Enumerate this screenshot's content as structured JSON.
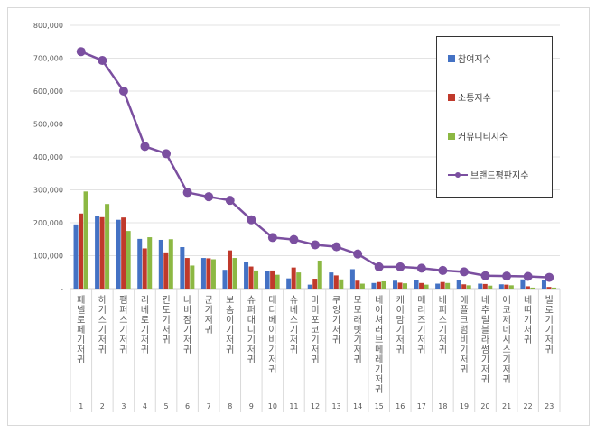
{
  "chart_data": {
    "type": "bar",
    "categories": [
      "페넬로페기저귀",
      "하기스기저귀",
      "팸퍼스기저귀",
      "리베로기저귀",
      "킨도기저귀",
      "나비잠기저귀",
      "군기저귀",
      "보솜이기저귀",
      "슈퍼대디기저귀",
      "대디베이비기저귀",
      "슈베스기저귀",
      "마미포코기저귀",
      "쿠잉기저귀",
      "모모래빗기저귀",
      "네이쳐러브메레기저귀",
      "케이맘기저귀",
      "메리즈기저귀",
      "베피스기저귀",
      "애플크럼비기저귀",
      "네추럴블라썸기저귀",
      "에코제네시스기저귀",
      "네띠기저귀",
      "빌로기기저귀"
    ],
    "ranks": [
      "1",
      "2",
      "3",
      "4",
      "5",
      "6",
      "7",
      "8",
      "9",
      "10",
      "11",
      "12",
      "13",
      "14",
      "15",
      "16",
      "17",
      "18",
      "19",
      "20",
      "21",
      "22",
      "23"
    ],
    "series": [
      {
        "name": "참여지수",
        "type": "bar",
        "color": "#4472c4",
        "values": [
          195000,
          220000,
          209000,
          151000,
          148000,
          126000,
          93000,
          57000,
          81000,
          53000,
          31000,
          12000,
          49000,
          59000,
          17000,
          24000,
          27000,
          15000,
          26000,
          15000,
          13000,
          28000,
          26000
        ]
      },
      {
        "name": "소통지수",
        "type": "bar",
        "color": "#c0392b",
        "values": [
          228000,
          217000,
          216000,
          122000,
          110000,
          93000,
          92000,
          116000,
          67000,
          55000,
          64000,
          30000,
          40000,
          24000,
          20000,
          18000,
          17000,
          20000,
          13000,
          14000,
          12000,
          7000,
          5000
        ]
      },
      {
        "name": "커뮤니티지수",
        "type": "bar",
        "color": "#8cb843",
        "values": [
          295000,
          257000,
          175000,
          156000,
          150000,
          70000,
          89000,
          93000,
          55000,
          42000,
          49000,
          85000,
          28000,
          15000,
          22000,
          16000,
          12000,
          17000,
          10000,
          9000,
          10000,
          3000,
          3000
        ]
      },
      {
        "name": "브랜드평판지수",
        "type": "line",
        "color": "#7b4fa0",
        "values": [
          720000,
          693000,
          600000,
          432000,
          410000,
          292000,
          279000,
          268000,
          209000,
          155000,
          149000,
          133000,
          127000,
          105000,
          66000,
          66000,
          62000,
          55000,
          51000,
          39000,
          38000,
          37000,
          34000
        ]
      }
    ],
    "yticks": [
      "-",
      "100,000",
      "200,000",
      "300,000",
      "400,000",
      "500,000",
      "600,000",
      "700,000",
      "800,000"
    ],
    "ylim": [
      0,
      800000
    ],
    "grid": true,
    "legend": "top-right"
  }
}
